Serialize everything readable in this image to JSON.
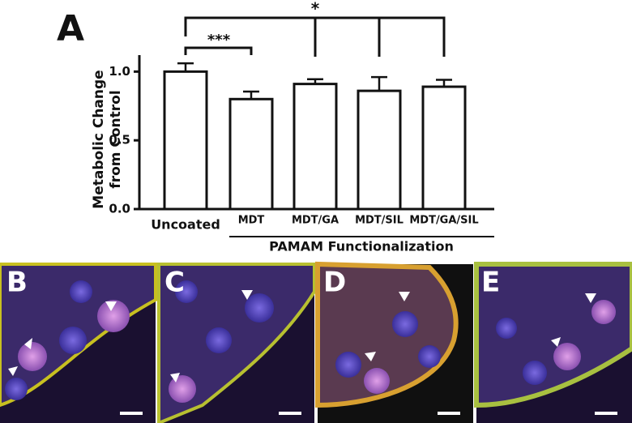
{
  "panel_labels": [
    "A",
    "B",
    "C",
    "D",
    "E"
  ],
  "chart_data": {
    "type": "bar",
    "y_label": [
      "Metabolic Change",
      "from Control"
    ],
    "categories": [
      "Uncoated",
      "MDT",
      "MDT/GA",
      "MDT/SIL",
      "MDT/GA/SIL"
    ],
    "group_label": "PAMAM Functionalization",
    "values": [
      1.0,
      0.8,
      0.91,
      0.86,
      0.89
    ],
    "errors": [
      0.06,
      0.055,
      0.035,
      0.1,
      0.05
    ],
    "color": "#ffffff",
    "ylim": [
      0,
      1.12
    ],
    "yticks": [
      {
        "value": 0,
        "label": "0.0"
      },
      {
        "value": 0.5,
        "label": "0.5"
      },
      {
        "value": 1.0,
        "label": "1.0"
      }
    ],
    "annotations": [
      "***",
      "*"
    ]
  }
}
